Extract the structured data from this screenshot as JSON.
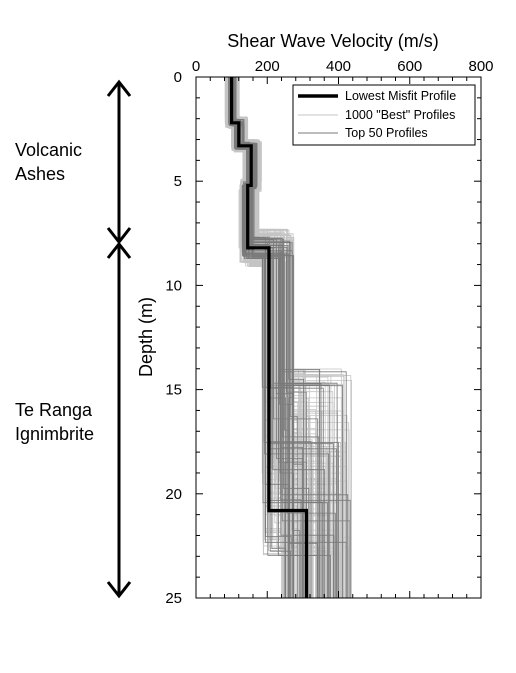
{
  "chart_data": {
    "type": "line",
    "title": "",
    "xlabel": "Shear Wave Velocity (m/s)",
    "ylabel": "Depth (m)",
    "xlim": [
      0,
      800
    ],
    "ylim": [
      25,
      0
    ],
    "x_ticks": [
      "0",
      "200",
      "400",
      "600",
      "800"
    ],
    "y_ticks": [
      "0",
      "5",
      "10",
      "15",
      "20",
      "25"
    ],
    "x_axis_position": "top",
    "grid": false,
    "legend_position": "top-right",
    "legend": [
      {
        "label": "Lowest Misfit Profile",
        "color": "#000000",
        "width": "thick"
      },
      {
        "label": "1000 \"Best\" Profiles",
        "color": "#c4c4c4",
        "width": "thin"
      },
      {
        "label": "Top 50 Profiles",
        "color": "#7a7a7a",
        "width": "thin"
      }
    ],
    "series": [
      {
        "name": "Lowest Misfit Profile",
        "color": "#000000",
        "points": [
          [
            100,
            0
          ],
          [
            100,
            2.2
          ],
          [
            120,
            2.2
          ],
          [
            120,
            3.3
          ],
          [
            155,
            3.3
          ],
          [
            155,
            5.2
          ],
          [
            145,
            5.2
          ],
          [
            145,
            8.2
          ],
          [
            205,
            8.2
          ],
          [
            205,
            20.8
          ],
          [
            310,
            20.8
          ],
          [
            310,
            25
          ]
        ]
      },
      {
        "name": "1000 \"Best\" Profiles",
        "color": "#c4c4c4",
        "ensemble": "1000 \"Best\" Profiles"
      },
      {
        "name": "Top 50 Profiles",
        "color": "#7a7a7a",
        "ensemble": "Top 50 Profiles"
      }
    ],
    "layers": [
      {
        "label_lines": [
          "Volcanic",
          "Ashes"
        ],
        "top": 0,
        "bottom": 8.2
      },
      {
        "label_lines": [
          "Te Ranga",
          "Ignimbrite"
        ],
        "top": 8.2,
        "bottom": 25
      }
    ]
  }
}
